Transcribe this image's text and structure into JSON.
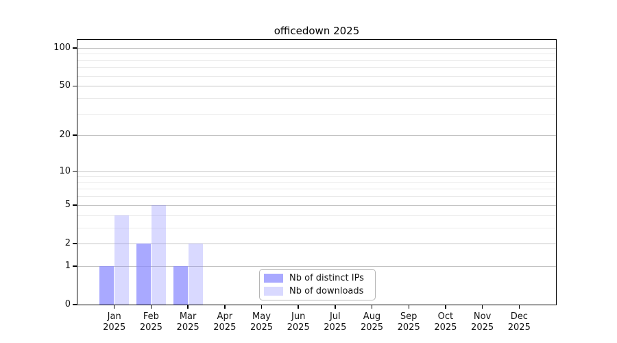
{
  "title": "officedown 2025",
  "chart_data": {
    "type": "bar",
    "title": "officedown 2025",
    "categories": [
      "Jan 2025",
      "Feb 2025",
      "Mar 2025",
      "Apr 2025",
      "May 2025",
      "Jun 2025",
      "Jul 2025",
      "Aug 2025",
      "Sep 2025",
      "Oct 2025",
      "Nov 2025",
      "Dec 2025"
    ],
    "series": [
      {
        "name": "Nb of distinct IPs",
        "color": "rgba(136,136,255,0.72)",
        "values": [
          1,
          2,
          1,
          0,
          0,
          0,
          0,
          0,
          0,
          0,
          0,
          0
        ]
      },
      {
        "name": "Nb of downloads",
        "color": "rgba(136,136,255,0.32)",
        "values": [
          4,
          5,
          2,
          0,
          0,
          0,
          0,
          0,
          0,
          0,
          0,
          0
        ]
      }
    ],
    "xlabel": "",
    "ylabel": "",
    "yscale": "log1p",
    "ylim": [
      0,
      113
    ],
    "yticks": [
      0,
      1,
      2,
      5,
      10,
      20,
      50,
      100
    ],
    "minor_gridlines": [
      3,
      4,
      6,
      7,
      8,
      9,
      30,
      40,
      60,
      70,
      80,
      90
    ],
    "grid": true,
    "legend_position": "bottom-center"
  }
}
